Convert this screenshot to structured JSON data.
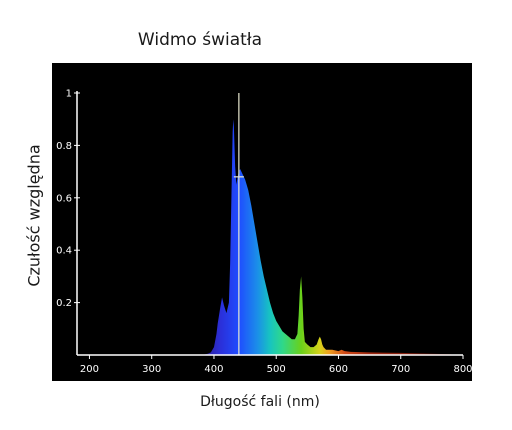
{
  "chart_data": {
    "type": "area",
    "title": "Widmo światła",
    "xlabel": "Długość fali (nm)",
    "ylabel": "Czułość względna",
    "xlim": [
      180,
      800
    ],
    "ylim": [
      0,
      1
    ],
    "x_ticks": [
      200,
      300,
      400,
      500,
      600,
      700,
      800
    ],
    "y_ticks": [
      0.2,
      0.4,
      0.6,
      0.8,
      1
    ],
    "grid": false,
    "background": "#000000",
    "peak_marker": {
      "x": 440,
      "y": 1.0,
      "half_max": 0.68
    },
    "series": [
      {
        "x": [
          380,
          390,
          395,
          400,
          404,
          406,
          408,
          410,
          413,
          416,
          420,
          424,
          426,
          428,
          430,
          431,
          432,
          434,
          436,
          438,
          440,
          442,
          444,
          446,
          448,
          450,
          455,
          460,
          465,
          470,
          475,
          480,
          485,
          490,
          495,
          500,
          505,
          510,
          515,
          520,
          525,
          530,
          534,
          536,
          538,
          540,
          542,
          544,
          546,
          550,
          555,
          560,
          565,
          568,
          570,
          572,
          574,
          576,
          580,
          590,
          600,
          605,
          610,
          620,
          650,
          700,
          750,
          780,
          785
        ],
        "y": [
          0,
          0.005,
          0.01,
          0.03,
          0.08,
          0.12,
          0.15,
          0.18,
          0.22,
          0.19,
          0.16,
          0.2,
          0.35,
          0.6,
          0.85,
          0.9,
          0.87,
          0.72,
          0.65,
          0.68,
          0.7,
          0.71,
          0.7,
          0.69,
          0.68,
          0.67,
          0.63,
          0.57,
          0.5,
          0.43,
          0.36,
          0.3,
          0.25,
          0.2,
          0.16,
          0.13,
          0.11,
          0.09,
          0.08,
          0.07,
          0.06,
          0.06,
          0.08,
          0.15,
          0.25,
          0.3,
          0.22,
          0.1,
          0.05,
          0.04,
          0.03,
          0.03,
          0.04,
          0.06,
          0.07,
          0.06,
          0.04,
          0.03,
          0.02,
          0.02,
          0.015,
          0.02,
          0.015,
          0.012,
          0.01,
          0.008,
          0.005,
          0.003,
          0
        ]
      }
    ]
  }
}
